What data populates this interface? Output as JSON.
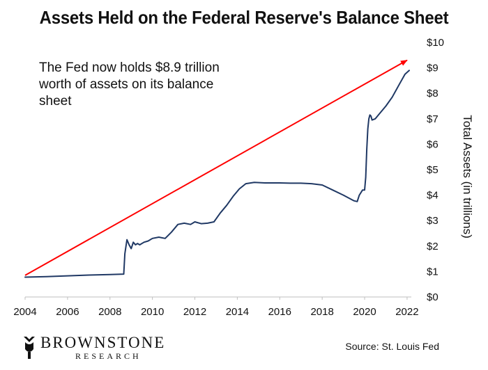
{
  "chart_data": {
    "type": "line",
    "title": "Assets Held on the Federal Reserve's Balance Sheet",
    "ylabel": "Total Assets (in trillions)",
    "xlim": [
      2004,
      2022.2
    ],
    "ylim": [
      0,
      10
    ],
    "x_ticks": [
      "2004",
      "2006",
      "2008",
      "2010",
      "2012",
      "2014",
      "2016",
      "2018",
      "2020",
      "2022"
    ],
    "y_ticks": [
      "$0",
      "$1",
      "$2",
      "$3",
      "$4",
      "$5",
      "$6",
      "$7",
      "$8",
      "$9",
      "$10"
    ],
    "grid": false,
    "series": [
      {
        "color": "#1f3864",
        "x": [
          2004.0,
          2005.0,
          2006.0,
          2007.0,
          2008.0,
          2008.65,
          2008.7,
          2008.8,
          2008.9,
          2009.0,
          2009.1,
          2009.2,
          2009.3,
          2009.4,
          2009.6,
          2009.8,
          2010.0,
          2010.3,
          2010.6,
          2010.9,
          2011.2,
          2011.5,
          2011.8,
          2012.0,
          2012.3,
          2012.6,
          2012.9,
          2013.2,
          2013.5,
          2013.8,
          2014.1,
          2014.4,
          2014.8,
          2015.3,
          2016.0,
          2016.5,
          2017.0,
          2017.5,
          2018.0,
          2018.5,
          2019.0,
          2019.5,
          2019.65,
          2019.75,
          2019.9,
          2020.0,
          2020.05,
          2020.1,
          2020.15,
          2020.2,
          2020.25,
          2020.3,
          2020.35,
          2020.5,
          2020.7,
          2021.0,
          2021.3,
          2021.6,
          2021.9,
          2022.1
        ],
        "values": [
          0.78,
          0.8,
          0.83,
          0.86,
          0.88,
          0.9,
          1.7,
          2.25,
          2.05,
          1.9,
          2.15,
          2.05,
          2.1,
          2.05,
          2.15,
          2.2,
          2.3,
          2.35,
          2.3,
          2.55,
          2.85,
          2.9,
          2.85,
          2.95,
          2.88,
          2.9,
          2.95,
          3.3,
          3.6,
          3.95,
          4.25,
          4.45,
          4.5,
          4.48,
          4.48,
          4.47,
          4.47,
          4.45,
          4.4,
          4.2,
          4.0,
          3.78,
          3.75,
          4.0,
          4.2,
          4.2,
          4.7,
          5.8,
          6.6,
          7.0,
          7.15,
          7.1,
          6.95,
          7.0,
          7.2,
          7.5,
          7.85,
          8.3,
          8.75,
          8.9
        ]
      }
    ],
    "trend_arrow": {
      "color": "#ff0000",
      "from": [
        2004.0,
        0.85
      ],
      "to": [
        2022.0,
        9.3
      ]
    }
  },
  "annotation": {
    "line1": "The Fed now holds $8.9 trillion",
    "line2": "worth of assets on its balance",
    "line3": "sheet"
  },
  "footer": {
    "brand": "BROWNSTONE",
    "brand_sub": "RESEARCH",
    "source": "Source: St. Louis Fed"
  }
}
